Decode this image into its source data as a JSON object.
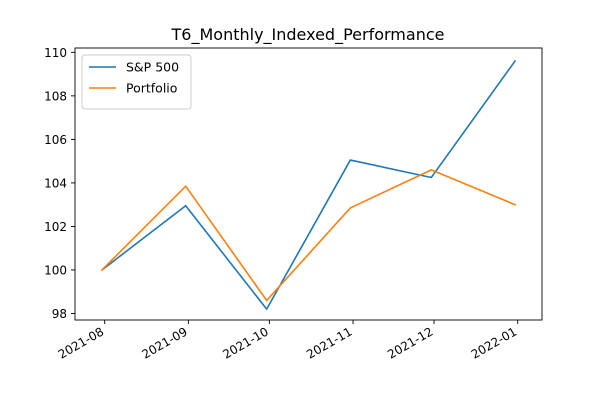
{
  "chart_data": {
    "type": "line",
    "title": "T6_Monthly_Indexed_Performance",
    "xlabel": "",
    "ylabel": "",
    "x": [
      "2021-07-31",
      "2021-08-31",
      "2021-09-30",
      "2021-10-31",
      "2021-11-30",
      "2021-12-31"
    ],
    "series": [
      {
        "name": "S&P 500",
        "color": "#1f77b4",
        "values": [
          100.0,
          102.95,
          98.2,
          105.05,
          104.25,
          109.6
        ]
      },
      {
        "name": "Portfolio",
        "color": "#ff7f0e",
        "values": [
          100.0,
          103.85,
          98.6,
          102.85,
          104.6,
          103.0
        ]
      }
    ],
    "xlim": [
      "2021-07-21",
      "2022-01-10"
    ],
    "ylim": [
      97.7,
      110.2
    ],
    "x_ticks": [
      {
        "date": "2021-08-01",
        "label": "2021-08"
      },
      {
        "date": "2021-09-01",
        "label": "2021-09"
      },
      {
        "date": "2021-10-01",
        "label": "2021-10"
      },
      {
        "date": "2021-11-01",
        "label": "2021-11"
      },
      {
        "date": "2021-12-01",
        "label": "2021-12"
      },
      {
        "date": "2022-01-01",
        "label": "2022-01"
      }
    ],
    "y_ticks": [
      98,
      100,
      102,
      104,
      106,
      108,
      110
    ],
    "grid": false,
    "legend_position": "upper-left"
  }
}
